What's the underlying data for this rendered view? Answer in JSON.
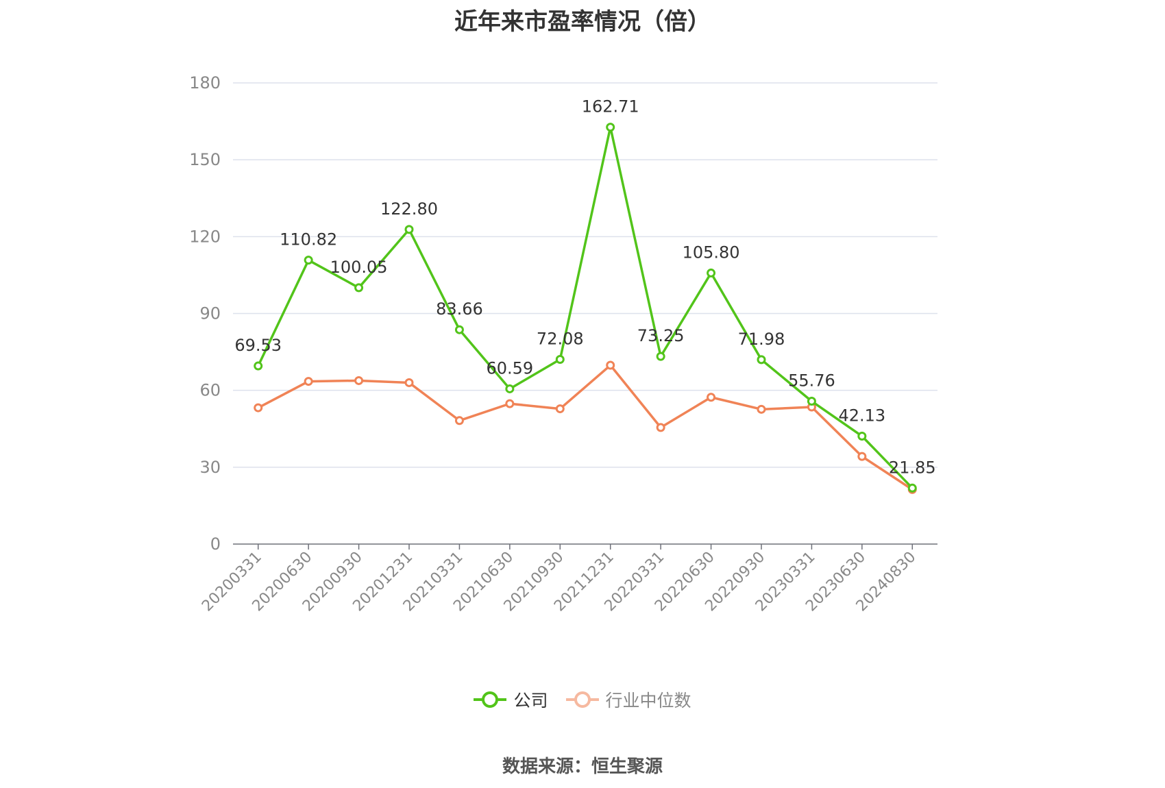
{
  "title": "近年来市盈率情况（倍）",
  "source_note": "数据来源：恒生聚源",
  "legend": {
    "company": "公司",
    "industry": "行业中位数"
  },
  "colors": {
    "company": "#52c41a",
    "industry": "#f08356",
    "industry_legend": "#f6b9a0",
    "grid": "#dde1ec",
    "axis": "#6e7079",
    "tick_text": "#888888",
    "label_text": "#333333"
  },
  "chart_data": {
    "type": "line",
    "title": "近年来市盈率情况（倍）",
    "xlabel": "",
    "ylabel": "",
    "ylim": [
      0,
      180
    ],
    "yticks": [
      "0",
      "30",
      "60",
      "90",
      "120",
      "150",
      "180"
    ],
    "grid": true,
    "legend_position": "bottom",
    "categories": [
      "20200331",
      "20200630",
      "20200930",
      "20201231",
      "20210331",
      "20210630",
      "20210930",
      "20211231",
      "20220331",
      "20220630",
      "20220930",
      "20230331",
      "20230630",
      "20240830"
    ],
    "series": [
      {
        "name": "公司",
        "values": [
          69.53,
          110.82,
          100.05,
          122.8,
          83.66,
          60.59,
          72.08,
          162.71,
          73.25,
          105.8,
          71.98,
          55.76,
          42.13,
          21.85
        ],
        "labels": [
          "69.53",
          "110.82",
          "100.05",
          "122.80",
          "83.66",
          "60.59",
          "72.08",
          "162.71",
          "73.25",
          "105.80",
          "71.98",
          "55.76",
          "42.13",
          "21.85"
        ]
      },
      {
        "name": "行业中位数",
        "values": [
          53.2,
          63.5,
          63.8,
          63.0,
          48.2,
          54.8,
          52.8,
          69.8,
          45.5,
          57.3,
          52.6,
          53.5,
          34.2,
          21.3
        ]
      }
    ]
  }
}
